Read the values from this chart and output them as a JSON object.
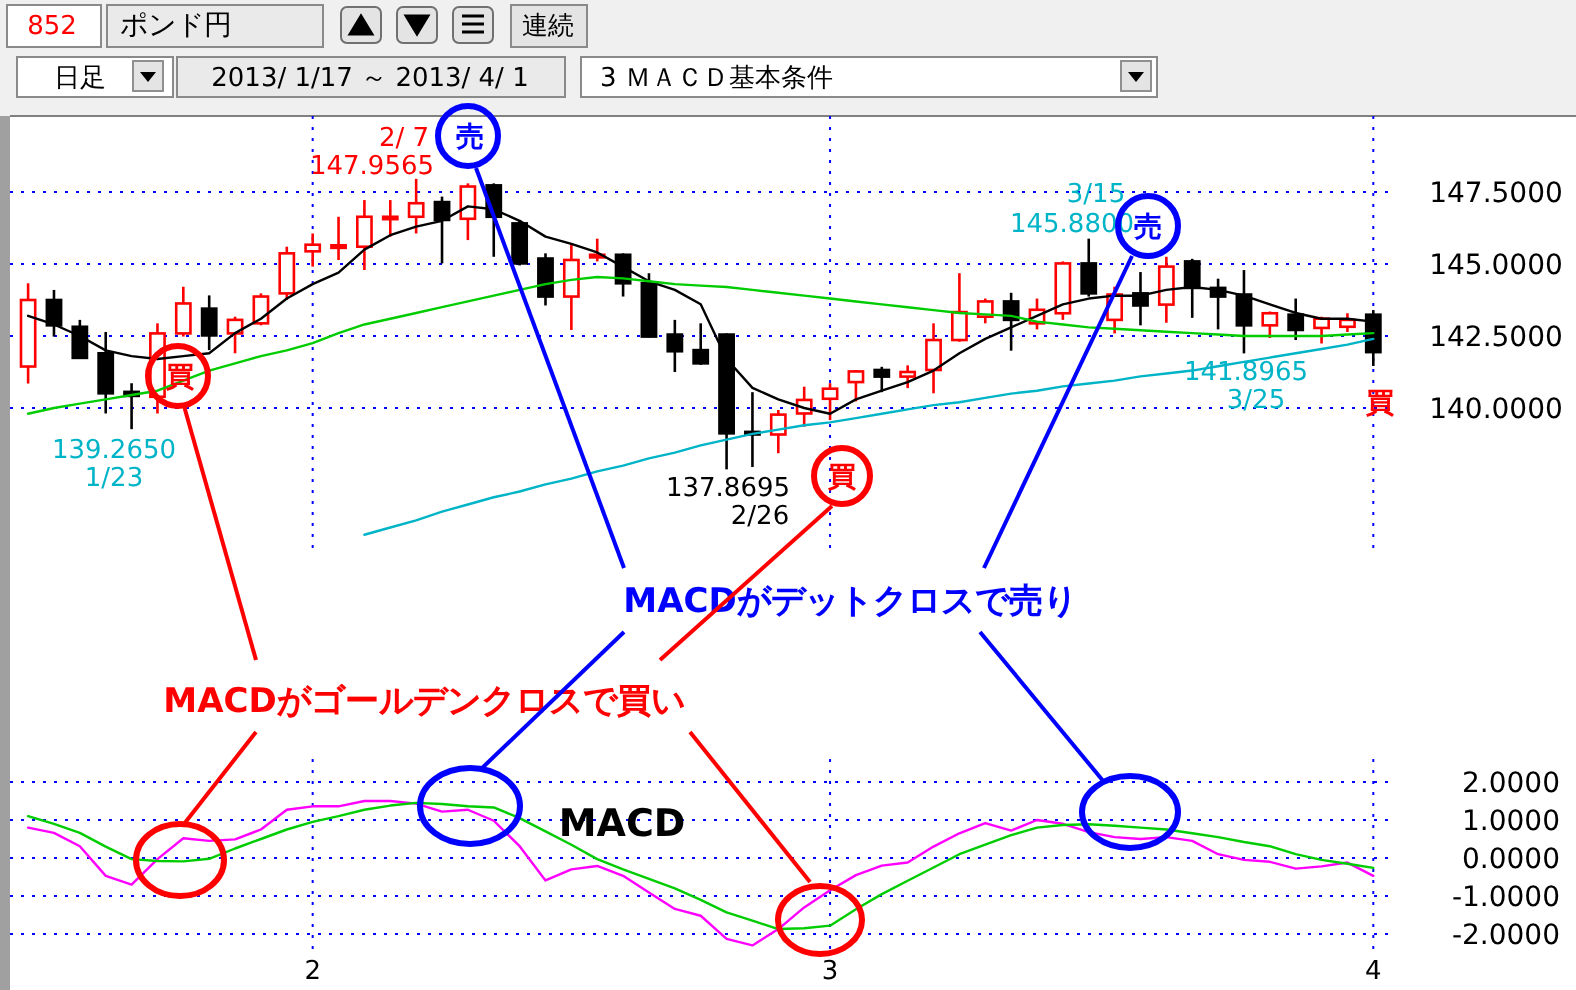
{
  "chart_data": [
    {
      "type": "candlestick",
      "categories": [
        null,
        null,
        null,
        null,
        null,
        null,
        null,
        null,
        null,
        null,
        null,
        "2",
        null,
        null,
        null,
        null,
        null,
        null,
        null,
        null,
        null,
        null,
        null,
        null,
        null,
        null,
        null,
        null,
        null,
        null,
        null,
        "3",
        null,
        null,
        null,
        null,
        null,
        null,
        null,
        null,
        null,
        null,
        null,
        null,
        null,
        null,
        null,
        null,
        null,
        null,
        null,
        null,
        "4"
      ],
      "ohlc": [
        [
          141.44,
          144.33,
          140.85,
          143.75
        ],
        [
          143.75,
          144.1,
          142.48,
          142.87
        ],
        [
          142.82,
          143.06,
          141.71,
          141.74
        ],
        [
          141.9,
          142.64,
          139.81,
          140.51
        ],
        [
          140.56,
          140.86,
          139.265,
          140.42
        ],
        [
          140.39,
          142.94,
          139.81,
          142.59
        ],
        [
          142.59,
          144.21,
          142.48,
          143.63
        ],
        [
          143.45,
          143.91,
          142.01,
          142.52
        ],
        [
          142.59,
          143.17,
          141.9,
          143.06
        ],
        [
          142.94,
          143.98,
          142.87,
          143.87
        ],
        [
          143.98,
          145.6,
          143.75,
          145.37
        ],
        [
          145.44,
          146.06,
          144.91,
          145.67
        ],
        [
          145.56,
          146.64,
          145.14,
          145.65
        ],
        [
          145.6,
          147.22,
          144.79,
          146.64
        ],
        [
          146.6,
          147.22,
          145.95,
          146.64
        ],
        [
          146.64,
          147.9565,
          146.06,
          147.11
        ],
        [
          147.15,
          147.34,
          145.02,
          146.53
        ],
        [
          146.57,
          147.8,
          145.83,
          147.69
        ],
        [
          147.73,
          147.8,
          145.25,
          146.64
        ],
        [
          146.41,
          146.53,
          144.95,
          145.02
        ],
        [
          145.19,
          145.37,
          143.56,
          143.87
        ],
        [
          143.87,
          145.72,
          142.71,
          145.14
        ],
        [
          145.23,
          145.88,
          145.09,
          145.32
        ],
        [
          145.32,
          145.37,
          143.87,
          144.33
        ],
        [
          144.33,
          144.68,
          142.45,
          142.48
        ],
        [
          142.55,
          143.06,
          141.25,
          141.97
        ],
        [
          142.01,
          142.94,
          141.5,
          141.55
        ],
        [
          142.55,
          142.59,
          137.8695,
          139.12
        ],
        [
          139.17,
          140.55,
          137.95,
          139.08
        ],
        [
          139.08,
          139.93,
          138.43,
          139.77
        ],
        [
          139.81,
          140.74,
          139.35,
          140.28
        ],
        [
          140.32,
          140.86,
          139.58,
          140.67
        ],
        [
          140.9,
          141.32,
          140.23,
          141.27
        ],
        [
          141.32,
          141.43,
          140.55,
          141.09
        ],
        [
          141.09,
          141.48,
          140.69,
          141.25
        ],
        [
          141.32,
          142.94,
          140.51,
          142.36
        ],
        [
          142.36,
          144.68,
          142.3,
          143.33
        ],
        [
          143.17,
          143.8,
          142.94,
          143.7
        ],
        [
          143.7,
          144.0,
          141.99,
          143.06
        ],
        [
          142.94,
          143.8,
          142.73,
          143.41
        ],
        [
          143.29,
          145.09,
          143.06,
          145.02
        ],
        [
          145.02,
          145.88,
          143.87,
          143.98
        ],
        [
          143.06,
          144.21,
          142.59,
          143.94
        ],
        [
          143.98,
          144.72,
          142.87,
          143.56
        ],
        [
          143.59,
          145.25,
          142.96,
          144.91
        ],
        [
          145.09,
          145.18,
          143.13,
          144.17
        ],
        [
          144.17,
          144.49,
          142.73,
          143.87
        ],
        [
          143.94,
          144.79,
          141.8965,
          142.87
        ],
        [
          142.87,
          143.35,
          142.43,
          143.29
        ],
        [
          143.24,
          143.8,
          142.36,
          142.71
        ],
        [
          142.78,
          143.17,
          142.24,
          143.1
        ],
        [
          142.82,
          143.29,
          142.64,
          143.06
        ],
        [
          143.24,
          143.4,
          141.46,
          141.94
        ]
      ],
      "colors": [
        "#ff0000",
        "#000000",
        "#000000",
        "#000000",
        "#000000",
        "#ff0000",
        "#ff0000",
        "#000000",
        "#ff0000",
        "#ff0000",
        "#ff0000",
        "#ff0000",
        "#ff0000",
        "#ff0000",
        "#ff0000",
        "#ff0000",
        "#000000",
        "#ff0000",
        "#000000",
        "#000000",
        "#000000",
        "#ff0000",
        "#ff0000",
        "#000000",
        "#000000",
        "#000000",
        "#000000",
        "#000000",
        "#000000",
        "#ff0000",
        "#ff0000",
        "#ff0000",
        "#ff0000",
        "#000000",
        "#ff0000",
        "#ff0000",
        "#ff0000",
        "#ff0000",
        "#000000",
        "#ff0000",
        "#ff0000",
        "#000000",
        "#ff0000",
        "#000000",
        "#ff0000",
        "#000000",
        "#000000",
        "#000000",
        "#ff0000",
        "#000000",
        "#ff0000",
        "#ff0000",
        "#000000"
      ],
      "series": [
        {
          "type": "line",
          "color": "#000000",
          "values": [
            143.2,
            142.9,
            142.5,
            142.0,
            141.8,
            141.7,
            141.8,
            141.9,
            142.6,
            143.1,
            143.8,
            144.3,
            144.7,
            145.5,
            146.0,
            146.3,
            146.5,
            147.0,
            146.9,
            146.5,
            145.95,
            145.7,
            145.4,
            144.9,
            144.4,
            144.1,
            143.6,
            141.7,
            140.7,
            140.3,
            140.0,
            139.8,
            140.3,
            140.6,
            140.9,
            141.3,
            141.9,
            142.4,
            142.8,
            143.2,
            143.6,
            143.8,
            143.9,
            143.9,
            144.1,
            144.2,
            144.1,
            143.9,
            143.6,
            143.3,
            143.1,
            143.1,
            143.0
          ]
        },
        {
          "type": "line",
          "color": "#00cc00",
          "values": [
            139.8,
            140.0,
            140.15,
            140.3,
            140.45,
            140.6,
            140.95,
            141.3,
            141.55,
            141.8,
            142.0,
            142.25,
            142.6,
            142.9,
            143.1,
            143.3,
            143.5,
            143.7,
            143.9,
            144.1,
            144.3,
            144.45,
            144.55,
            144.5,
            144.4,
            144.3,
            144.25,
            144.2,
            144.1,
            144.0,
            143.9,
            143.8,
            143.7,
            143.6,
            143.5,
            143.4,
            143.3,
            143.25,
            143.2,
            143.0,
            142.9,
            142.8,
            142.75,
            142.7,
            142.65,
            142.6,
            142.55,
            142.5,
            142.5,
            142.5,
            142.5,
            142.55,
            142.6
          ]
        },
        {
          "type": "line",
          "color": "#00b4c8",
          "values": [
            null,
            null,
            null,
            null,
            null,
            null,
            null,
            null,
            null,
            null,
            null,
            null,
            null,
            135.6,
            135.85,
            136.1,
            136.4,
            136.65,
            136.9,
            137.1,
            137.35,
            137.55,
            137.8,
            138.0,
            138.25,
            138.45,
            138.7,
            138.9,
            139.1,
            139.25,
            139.4,
            139.5,
            139.65,
            139.8,
            139.95,
            140.1,
            140.2,
            140.35,
            140.5,
            140.6,
            140.75,
            140.85,
            140.95,
            141.1,
            141.2,
            141.3,
            141.45,
            141.6,
            141.75,
            141.9,
            142.05,
            142.2,
            142.4
          ]
        }
      ],
      "ylim": [
        135,
        150
      ],
      "yticks": [
        {
          "value": 140,
          "label": "140.0000"
        },
        {
          "value": 142.5,
          "label": "142.5000"
        },
        {
          "value": 145,
          "label": "145.0000"
        },
        {
          "value": 147.5,
          "label": "147.5000"
        }
      ],
      "tick_labels": "y",
      "grid": true,
      "annotations": [
        "852",
        "ポンド円",
        "連続",
        "日足",
        "2013/ 1/17 ～ 2013/ 4/ 1",
        "3 ＭＡＣＤ基本条件",
        "MACDがゴールデンクロスで買い",
        "MACDがデットクロスで売り",
        "139.2650",
        "1/23",
        "2/ 7",
        "147.9565",
        "137.8695",
        "2/26",
        "3/15",
        "145.8800",
        "141.8965",
        "3/25",
        "買",
        "売",
        "買",
        "売",
        "買"
      ]
    },
    {
      "type": "line",
      "categories": [
        null,
        null,
        null,
        null,
        null,
        null,
        null,
        null,
        null,
        null,
        null,
        "2",
        null,
        null,
        null,
        null,
        null,
        null,
        null,
        null,
        null,
        null,
        null,
        null,
        null,
        null,
        null,
        null,
        null,
        null,
        null,
        "3",
        null,
        null,
        null,
        null,
        null,
        null,
        null,
        null,
        null,
        null,
        null,
        null,
        null,
        null,
        null,
        null,
        null,
        null,
        null,
        null,
        "4"
      ],
      "series": [
        {
          "color": "#ff00ff",
          "values": [
            0.8,
            0.66,
            0.31,
            -0.47,
            -0.7,
            -0.03,
            0.52,
            0.45,
            0.49,
            0.75,
            1.27,
            1.36,
            1.36,
            1.5,
            1.5,
            1.43,
            1.22,
            1.27,
            0.98,
            0.31,
            -0.59,
            -0.3,
            -0.21,
            -0.47,
            -0.91,
            -1.34,
            -1.52,
            -2.13,
            -2.3,
            -1.87,
            -1.3,
            -0.85,
            -0.45,
            -0.2,
            -0.12,
            0.3,
            0.65,
            0.92,
            0.72,
            1.0,
            0.9,
            0.68,
            0.55,
            0.5,
            0.55,
            0.45,
            0.1,
            -0.05,
            -0.1,
            -0.28,
            -0.22,
            -0.12,
            -0.47
          ]
        },
        {
          "color": "#00cc00",
          "values": [
            1.1,
            0.9,
            0.66,
            0.3,
            -0.03,
            -0.08,
            -0.09,
            -0.02,
            0.25,
            0.5,
            0.75,
            0.95,
            1.1,
            1.27,
            1.38,
            1.45,
            1.42,
            1.36,
            1.33,
            1.05,
            0.7,
            0.35,
            -0.03,
            -0.3,
            -0.55,
            -0.8,
            -1.1,
            -1.43,
            -1.65,
            -1.87,
            -1.85,
            -1.78,
            -1.35,
            -0.95,
            -0.6,
            -0.25,
            0.1,
            0.35,
            0.6,
            0.8,
            0.87,
            0.89,
            0.85,
            0.8,
            0.75,
            0.65,
            0.55,
            0.42,
            0.31,
            0.1,
            -0.05,
            -0.15,
            -0.26
          ]
        }
      ],
      "ylim": [
        -2.5,
        2.5
      ],
      "yticks": [
        {
          "value": -2,
          "label": "-2.0000"
        },
        {
          "value": -1,
          "label": "-1.0000"
        },
        {
          "value": 0,
          "label": "0.0000"
        },
        {
          "value": 1,
          "label": "1.0000"
        },
        {
          "value": 2,
          "label": "2.0000"
        }
      ],
      "grid": true,
      "annotations": [
        "MACD"
      ]
    }
  ]
}
